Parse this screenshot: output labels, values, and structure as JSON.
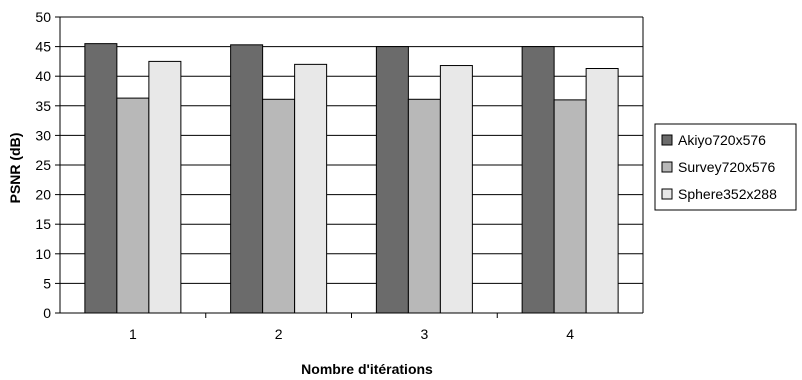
{
  "chart_data": {
    "type": "bar",
    "categories": [
      "1",
      "2",
      "3",
      "4"
    ],
    "series": [
      {
        "name": "Akiyo720x576",
        "values": [
          45.5,
          45.3,
          45.0,
          45.0
        ],
        "color": "#6b6b6b"
      },
      {
        "name": "Survey720x576",
        "values": [
          36.3,
          36.1,
          36.1,
          36.0
        ],
        "color": "#b8b8b8"
      },
      {
        "name": "Sphere352x288",
        "values": [
          42.5,
          42.0,
          41.8,
          41.3
        ],
        "color": "#e8e8e8"
      }
    ],
    "xlabel": "Nombre d'itérations",
    "ylabel": "PSNR (dB)",
    "ylim": [
      0,
      50
    ],
    "yticks": [
      0,
      5,
      10,
      15,
      20,
      25,
      30,
      35,
      40,
      45,
      50
    ],
    "grid": true,
    "legend": "right"
  }
}
